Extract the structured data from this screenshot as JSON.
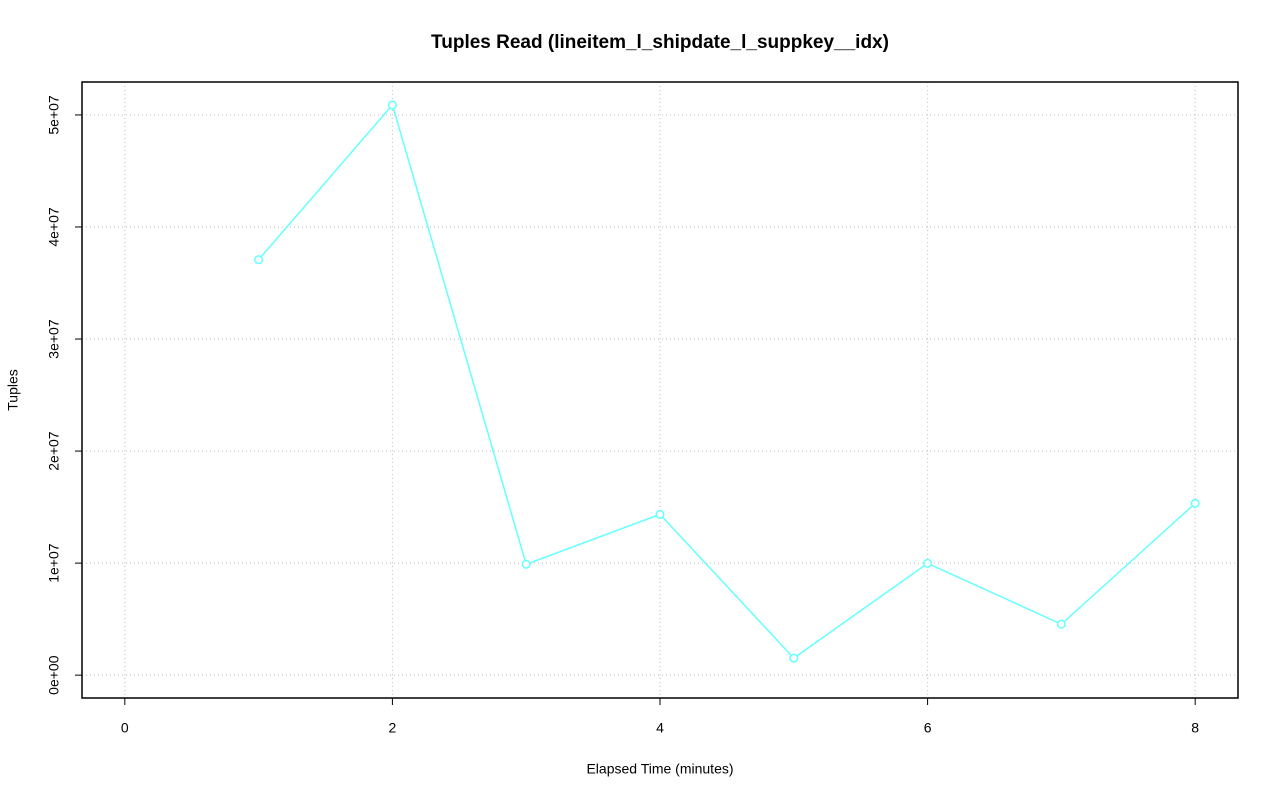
{
  "chart_data": {
    "type": "line",
    "title": "Tuples Read (lineitem_l_shipdate_l_suppkey__idx)",
    "x_label": "Elapsed Time (minutes)",
    "y_label": "Tuples",
    "x": [
      1,
      2,
      3,
      4,
      5,
      6,
      7,
      8
    ],
    "series": [
      {
        "color": "#66ffff",
        "values": [
          37080000,
          50890000,
          9890000,
          14350000,
          1520000,
          9980000,
          4550000,
          15330000
        ]
      }
    ],
    "xlim": [
      -0.32,
      8.32
    ],
    "xticks": [
      0,
      2,
      4,
      6,
      8
    ],
    "ylim": [
      -2040000,
      52940000
    ],
    "yticks": [
      {
        "value": 0,
        "label": "0e+00"
      },
      {
        "value": 10000000,
        "label": "1e+07"
      },
      {
        "value": 20000000,
        "label": "2e+07"
      },
      {
        "value": 30000000,
        "label": "3e+07"
      },
      {
        "value": 40000000,
        "label": "4e+07"
      },
      {
        "value": 50000000,
        "label": "5e+07"
      }
    ],
    "grid": true
  }
}
